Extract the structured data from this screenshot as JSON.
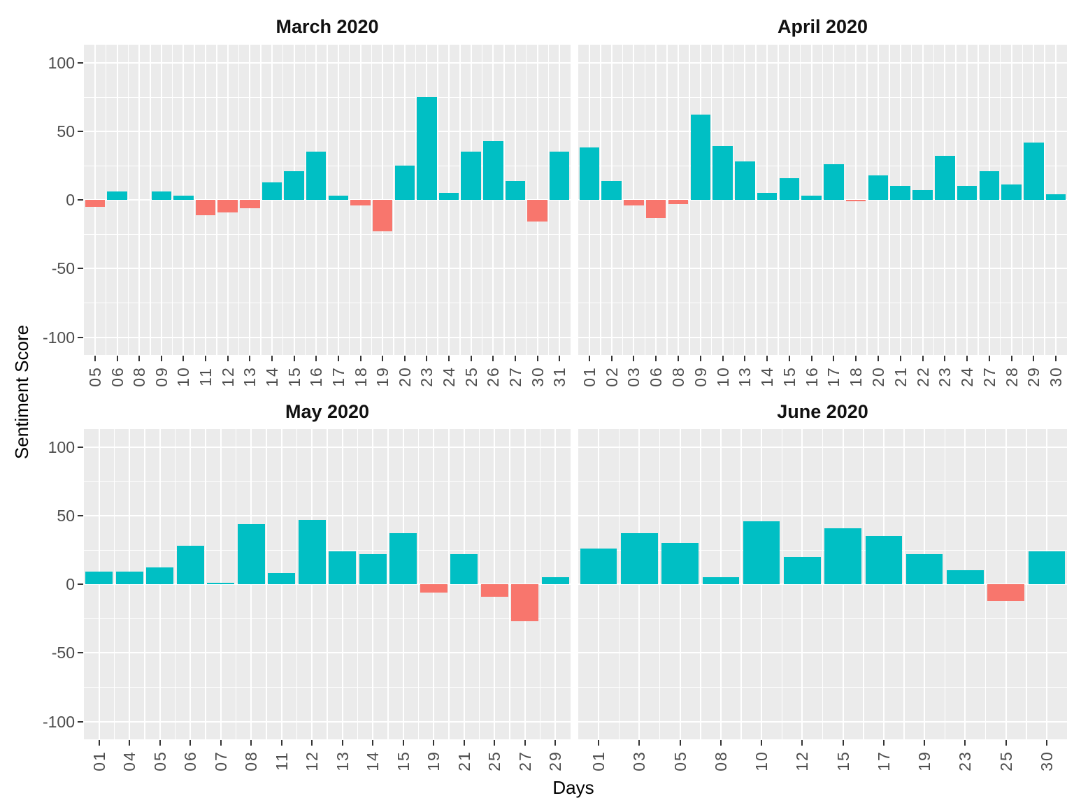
{
  "figure": {
    "y_axis_title": "Sentiment Score",
    "x_axis_title": "Days",
    "colors": {
      "positive_bar": "#00BFC4",
      "negative_bar": "#F8766D",
      "panel_background": "#EBEBEB",
      "gridline": "#FFFFFF",
      "axis_text": "#4D4D4D",
      "tick_mark": "#333333",
      "title_text": "#111111"
    },
    "y_ticks": [
      100,
      50,
      0,
      -50,
      -100
    ],
    "y_minor_ticks": [
      75,
      25,
      -25,
      -75
    ],
    "ylim": [
      -113,
      113
    ],
    "legend": "none",
    "grid": "white major and minor gridlines on grey panel"
  },
  "chart_data": [
    {
      "type": "bar",
      "title": "March 2020",
      "xlabel": "Days",
      "ylabel": "Sentiment Score",
      "ylim": [
        -113,
        113
      ],
      "categories": [
        "05",
        "06",
        "08",
        "09",
        "10",
        "11",
        "12",
        "13",
        "14",
        "15",
        "16",
        "17",
        "18",
        "19",
        "20",
        "23",
        "24",
        "25",
        "26",
        "27",
        "30",
        "31"
      ],
      "values": [
        -5,
        6,
        0,
        6,
        3,
        -11,
        -9,
        -6,
        13,
        21,
        35,
        3,
        -4,
        -23,
        25,
        75,
        5,
        35,
        43,
        14,
        -16,
        35
      ]
    },
    {
      "type": "bar",
      "title": "April 2020",
      "xlabel": "Days",
      "ylabel": "Sentiment Score",
      "ylim": [
        -113,
        113
      ],
      "categories": [
        "01",
        "02",
        "03",
        "06",
        "08",
        "09",
        "10",
        "13",
        "14",
        "15",
        "16",
        "17",
        "18",
        "20",
        "21",
        "22",
        "23",
        "24",
        "27",
        "28",
        "29",
        "30"
      ],
      "values": [
        38,
        14,
        -4,
        -13,
        -3,
        62,
        39,
        28,
        5,
        16,
        3,
        26,
        -1,
        18,
        10,
        7,
        32,
        10,
        21,
        11,
        42,
        4
      ]
    },
    {
      "type": "bar",
      "title": "May 2020",
      "xlabel": "Days",
      "ylabel": "Sentiment Score",
      "ylim": [
        -113,
        113
      ],
      "categories": [
        "01",
        "04",
        "05",
        "06",
        "07",
        "08",
        "11",
        "12",
        "13",
        "14",
        "15",
        "19",
        "21",
        "25",
        "27",
        "29"
      ],
      "values": [
        9,
        9,
        12,
        28,
        1,
        44,
        8,
        47,
        24,
        22,
        37,
        -6,
        22,
        -9,
        -27,
        5
      ]
    },
    {
      "type": "bar",
      "title": "June 2020",
      "xlabel": "Days",
      "ylabel": "Sentiment Score",
      "ylim": [
        -113,
        113
      ],
      "categories": [
        "01",
        "03",
        "05",
        "08",
        "10",
        "12",
        "15",
        "17",
        "19",
        "23",
        "25",
        "30"
      ],
      "values": [
        26,
        37,
        30,
        5,
        46,
        20,
        41,
        35,
        22,
        10,
        -12,
        24
      ]
    }
  ]
}
